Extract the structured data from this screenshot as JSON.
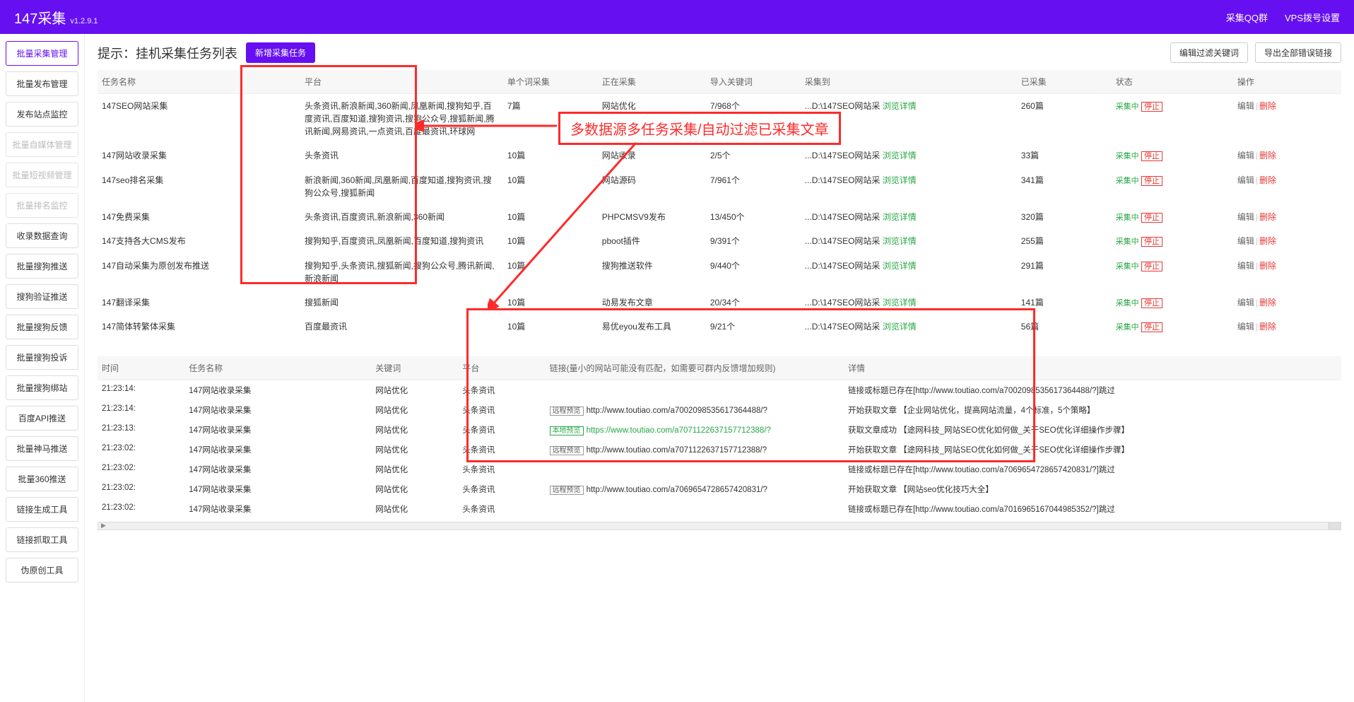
{
  "header": {
    "title": "147采集",
    "version": "v1.2.9.1",
    "links": [
      "采集QQ群",
      "VPS拨号设置"
    ]
  },
  "sidebar": {
    "items": [
      {
        "label": "批量采集管理",
        "state": "active"
      },
      {
        "label": "批量发布管理",
        "state": ""
      },
      {
        "label": "发布站点监控",
        "state": ""
      },
      {
        "label": "批量自媒体管理",
        "state": "disabled"
      },
      {
        "label": "批量短视频管理",
        "state": "disabled"
      },
      {
        "label": "批量排名监控",
        "state": "disabled"
      },
      {
        "label": "收录数据查询",
        "state": ""
      },
      {
        "label": "批量搜狗推送",
        "state": ""
      },
      {
        "label": "搜狗验证推送",
        "state": ""
      },
      {
        "label": "批量搜狗反馈",
        "state": ""
      },
      {
        "label": "批量搜狗投诉",
        "state": ""
      },
      {
        "label": "批量搜狗绑站",
        "state": ""
      },
      {
        "label": "百度API推送",
        "state": ""
      },
      {
        "label": "批量神马推送",
        "state": ""
      },
      {
        "label": "批量360推送",
        "state": ""
      },
      {
        "label": "链接生成工具",
        "state": ""
      },
      {
        "label": "链接抓取工具",
        "state": ""
      },
      {
        "label": "伪原创工具",
        "state": ""
      }
    ]
  },
  "titlebar": {
    "hint": "提示：挂机采集任务列表",
    "new_task": "新增采集任务",
    "filter_btn": "编辑过滤关键词",
    "export_btn": "导出全部错误链接"
  },
  "annotations": {
    "callout_text": "多数据源多任务采集/自动过滤已采集文章",
    "callout_color": "#ff2a2a"
  },
  "tasks": {
    "columns": [
      "任务名称",
      "平台",
      "单个词采集",
      "正在采集",
      "导入关键词",
      "采集到",
      "已采集",
      "状态",
      "操作"
    ],
    "detail_link": "浏览详情",
    "status_running": "采集中",
    "status_stop": "停止",
    "op_edit": "编辑",
    "op_del": "删除",
    "rows": [
      {
        "name": "147SEO网站采集",
        "platform": "头条资讯,新浪新闻,360新闻,凤凰新闻,搜狗知乎,百度资讯,百度知道,搜狗资讯,搜狗公众号,搜狐新闻,腾讯新闻,网易资讯,一点资讯,百度最资讯,环球网",
        "per": "7篇",
        "collecting": "网站优化",
        "keywords": "7/968个",
        "path": "...D:\\147SEO网站采",
        "done": "260篇"
      },
      {
        "name": "147网站收录采集",
        "platform": "头条资讯",
        "per": "10篇",
        "collecting": "网站收录",
        "keywords": "2/5个",
        "path": "...D:\\147SEO网站采",
        "done": "33篇"
      },
      {
        "name": "147seo排名采集",
        "platform": "新浪新闻,360新闻,凤凰新闻,百度知道,搜狗资讯,搜狗公众号,搜狐新闻",
        "per": "10篇",
        "collecting": "网站源码",
        "keywords": "7/961个",
        "path": "...D:\\147SEO网站采",
        "done": "341篇"
      },
      {
        "name": "147免费采集",
        "platform": "头条资讯,百度资讯,新浪新闻,360新闻",
        "per": "10篇",
        "collecting": "PHPCMSV9发布",
        "keywords": "13/450个",
        "path": "...D:\\147SEO网站采",
        "done": "320篇"
      },
      {
        "name": "147支持各大CMS发布",
        "platform": "搜狗知乎,百度资讯,凤凰新闻,百度知道,搜狗资讯",
        "per": "10篇",
        "collecting": "pboot插件",
        "keywords": "9/391个",
        "path": "...D:\\147SEO网站采",
        "done": "255篇"
      },
      {
        "name": "147自动采集为原创发布推送",
        "platform": "搜狗知乎,头条资讯,搜狐新闻,搜狗公众号,腾讯新闻,新浪新闻",
        "per": "10篇",
        "collecting": "搜狗推送软件",
        "keywords": "9/440个",
        "path": "...D:\\147SEO网站采",
        "done": "291篇"
      },
      {
        "name": "147翻译采集",
        "platform": "搜狐新闻",
        "per": "10篇",
        "collecting": "动易发布文章",
        "keywords": "20/34个",
        "path": "...D:\\147SEO网站采",
        "done": "141篇"
      },
      {
        "name": "147简体转繁体采集",
        "platform": "百度最资讯",
        "per": "10篇",
        "collecting": "易优eyou发布工具",
        "keywords": "9/21个",
        "path": "...D:\\147SEO网站采",
        "done": "56篇"
      }
    ]
  },
  "log": {
    "columns": [
      "时间",
      "任务名称",
      "关键词",
      "平台",
      "链接(量小的网站可能没有匹配，如需要可群内反馈增加规则)",
      "详情"
    ],
    "tag_remote": "远程预览",
    "tag_local": "本地预览",
    "rows": [
      {
        "time": "21:23:14:",
        "task": "147网站收录采集",
        "kw": "网站优化",
        "plat": "头条资讯",
        "link": "",
        "link_type": "",
        "detail": "链接或标题已存在[http://www.toutiao.com/a7002098535617364488/?]跳过"
      },
      {
        "time": "21:23:14:",
        "task": "147网站收录采集",
        "kw": "网站优化",
        "plat": "头条资讯",
        "link": "http://www.toutiao.com/a7002098535617364488/?",
        "link_type": "remote",
        "detail": "开始获取文章 【企业网站优化，提高网站流量，4个标准，5个策略】"
      },
      {
        "time": "21:23:13:",
        "task": "147网站收录采集",
        "kw": "网站优化",
        "plat": "头条资讯",
        "link": "https://www.toutiao.com/a7071122637157712388/?",
        "link_type": "local",
        "detail": "获取文章成功 【途网科技_网站SEO优化如何做_关于SEO优化详细操作步骤】"
      },
      {
        "time": "21:23:02:",
        "task": "147网站收录采集",
        "kw": "网站优化",
        "plat": "头条资讯",
        "link": "http://www.toutiao.com/a7071122637157712388/?",
        "link_type": "remote",
        "detail": "开始获取文章 【途网科技_网站SEO优化如何做_关于SEO优化详细操作步骤】"
      },
      {
        "time": "21:23:02:",
        "task": "147网站收录采集",
        "kw": "网站优化",
        "plat": "头条资讯",
        "link": "",
        "link_type": "",
        "detail": "链接或标题已存在[http://www.toutiao.com/a7069654728657420831/?]跳过"
      },
      {
        "time": "21:23:02:",
        "task": "147网站收录采集",
        "kw": "网站优化",
        "plat": "头条资讯",
        "link": "http://www.toutiao.com/a7069654728657420831/?",
        "link_type": "remote",
        "detail": "开始获取文章 【网站seo优化技巧大全】"
      },
      {
        "time": "21:23:02:",
        "task": "147网站收录采集",
        "kw": "网站优化",
        "plat": "头条资讯",
        "link": "",
        "link_type": "",
        "detail": "链接或标题已存在[http://www.toutiao.com/a7016965167044985352/?]跳过"
      }
    ]
  }
}
